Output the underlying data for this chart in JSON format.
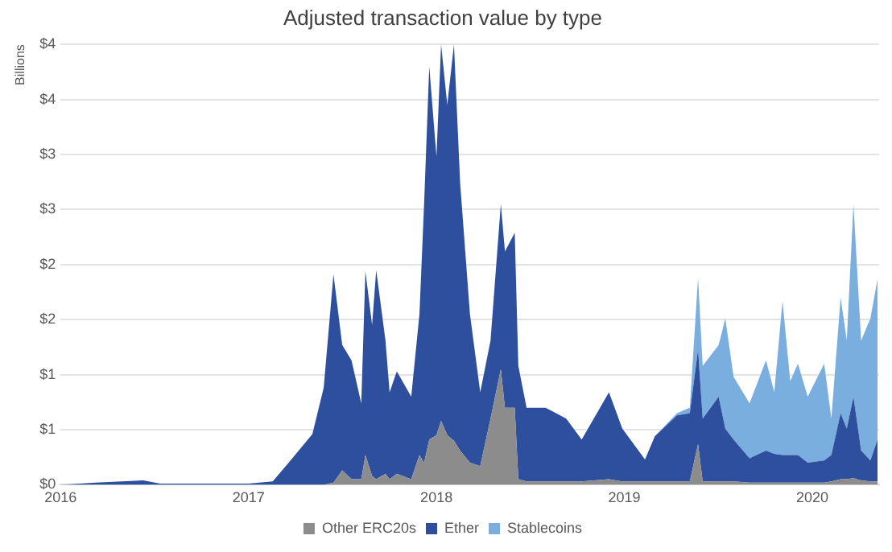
{
  "chart_data": {
    "type": "area",
    "title": "Adjusted transaction value by type",
    "ylabel": "Billions",
    "stacked": true,
    "grid": "y",
    "legend": "bottom",
    "marker": "none",
    "x": [
      "2016-01-01",
      "2016-03-10",
      "2016-06-10",
      "2016-07-13",
      "2016-10-15",
      "2017-01-01",
      "2017-02-17",
      "2017-03-20",
      "2017-05-05",
      "2017-05-27",
      "2017-06-15",
      "2017-07-02",
      "2017-07-20",
      "2017-08-08",
      "2017-08-16",
      "2017-08-29",
      "2017-09-06",
      "2017-09-24",
      "2017-10-02",
      "2017-10-16",
      "2017-11-13",
      "2017-11-29",
      "2017-12-08",
      "2017-12-18",
      "2018-01-01",
      "2018-01-10",
      "2018-01-22",
      "2018-02-04",
      "2018-02-16",
      "2018-03-07",
      "2018-03-27",
      "2018-04-16",
      "2018-05-06",
      "2018-05-14",
      "2018-06-02",
      "2018-06-09",
      "2018-06-25",
      "2018-08-01",
      "2018-09-10",
      "2018-10-10",
      "2018-12-02",
      "2018-12-28",
      "2019-02-10",
      "2019-03-01",
      "2019-04-13",
      "2019-05-08",
      "2019-05-24",
      "2019-06-02",
      "2019-07-03",
      "2019-07-16",
      "2019-08-01",
      "2019-09-01",
      "2019-10-03",
      "2019-10-19",
      "2019-11-04",
      "2019-11-19",
      "2019-12-04",
      "2019-12-23",
      "2020-01-24",
      "2020-02-07",
      "2020-02-25",
      "2020-03-08",
      "2020-03-21",
      "2020-04-05",
      "2020-04-23",
      "2020-05-07"
    ],
    "series": [
      {
        "name": "Other ERC20s",
        "color": "#8c8c8c",
        "values": [
          0,
          0,
          0,
          0,
          0,
          0,
          0,
          0,
          0,
          0,
          0.02,
          0.13,
          0.05,
          0.05,
          0.27,
          0.08,
          0.05,
          0.1,
          0.05,
          0.1,
          0.05,
          0.27,
          0.2,
          0.41,
          0.45,
          0.58,
          0.45,
          0.4,
          0.31,
          0.2,
          0.17,
          0.6,
          1.05,
          0.7,
          0.7,
          0.05,
          0.03,
          0.03,
          0.03,
          0.03,
          0.05,
          0.03,
          0.03,
          0.03,
          0.03,
          0.03,
          0.37,
          0.03,
          0.03,
          0.03,
          0.03,
          0.02,
          0.02,
          0.02,
          0.02,
          0.02,
          0.02,
          0.02,
          0.02,
          0.03,
          0.05,
          0.05,
          0.06,
          0.04,
          0.03,
          0.03
        ]
      },
      {
        "name": "Ether",
        "color": "#2e4f9e",
        "values": [
          0,
          0.02,
          0.04,
          0.01,
          0.01,
          0.01,
          0.03,
          0.2,
          0.46,
          0.88,
          1.89,
          1.14,
          1.08,
          0.69,
          1.67,
          1.37,
          1.9,
          1.21,
          0.79,
          0.93,
          0.75,
          1.28,
          2.35,
          3.39,
          2.53,
          3.42,
          3.0,
          3.6,
          2.43,
          1.35,
          0.67,
          0.71,
          1.5,
          1.42,
          1.59,
          1.03,
          0.67,
          0.67,
          0.57,
          0.38,
          0.79,
          0.48,
          0.2,
          0.41,
          0.6,
          0.62,
          0.86,
          0.57,
          0.77,
          0.48,
          0.38,
          0.22,
          0.29,
          0.26,
          0.25,
          0.25,
          0.25,
          0.18,
          0.2,
          0.24,
          0.6,
          0.46,
          0.74,
          0.27,
          0.19,
          0.38
        ]
      },
      {
        "name": "Stablecoins",
        "color": "#7aaede",
        "values": [
          null,
          null,
          null,
          null,
          null,
          null,
          null,
          null,
          null,
          null,
          null,
          null,
          null,
          null,
          null,
          null,
          null,
          null,
          null,
          null,
          null,
          null,
          null,
          null,
          null,
          null,
          null,
          null,
          null,
          null,
          null,
          null,
          null,
          null,
          null,
          null,
          null,
          null,
          null,
          null,
          null,
          null,
          null,
          0,
          0.02,
          0.05,
          0.65,
          0.48,
          0.47,
          1.0,
          0.57,
          0.5,
          0.82,
          0.56,
          1.4,
          0.67,
          0.83,
          0.6,
          0.88,
          0.33,
          1.05,
          0.8,
          1.75,
          1.0,
          1.29,
          1.46
        ]
      }
    ],
    "xlim": [
      "2016-01-01",
      "2020-05-10"
    ],
    "xticks": [
      "2016",
      "2017",
      "2018",
      "2019",
      "2020"
    ],
    "ylim": [
      0,
      4
    ],
    "yticks": [
      {
        "value": 0,
        "label": "$0"
      },
      {
        "value": 0.5,
        "label": "$1"
      },
      {
        "value": 1,
        "label": "$1"
      },
      {
        "value": 1.5,
        "label": "$2"
      },
      {
        "value": 2,
        "label": "$2"
      },
      {
        "value": 2.5,
        "label": "$3"
      },
      {
        "value": 3,
        "label": "$3"
      },
      {
        "value": 3.5,
        "label": "$4"
      },
      {
        "value": 4,
        "label": "$4"
      }
    ]
  }
}
